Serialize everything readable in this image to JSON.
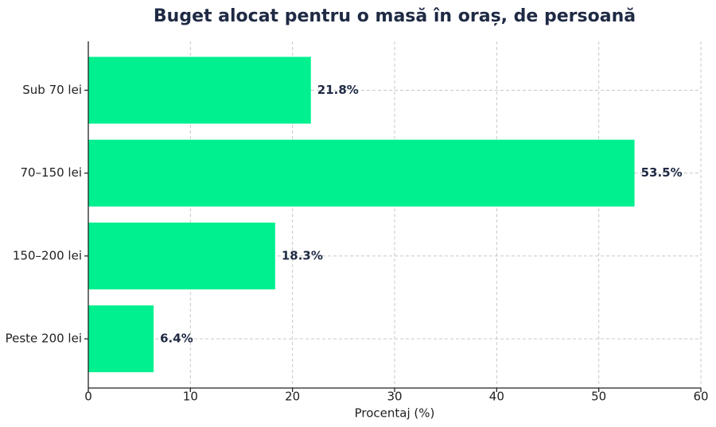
{
  "chart_data": {
    "type": "barh",
    "title": "Buget alocat pentru o masă în oraș, de persoană",
    "xlabel": "Procentaj (%)",
    "categories": [
      "Sub 70 lei",
      "70–150 lei",
      "150–200 lei",
      "Peste 200 lei"
    ],
    "values": [
      21.8,
      53.5,
      18.3,
      6.4
    ],
    "value_labels": [
      "21.8%",
      "53.5%",
      "18.3%",
      "6.4%"
    ],
    "color": "#00f08f",
    "xlim": [
      0,
      60
    ],
    "xticks": [
      0,
      10,
      20,
      30,
      40,
      50,
      60
    ],
    "grid": true
  }
}
